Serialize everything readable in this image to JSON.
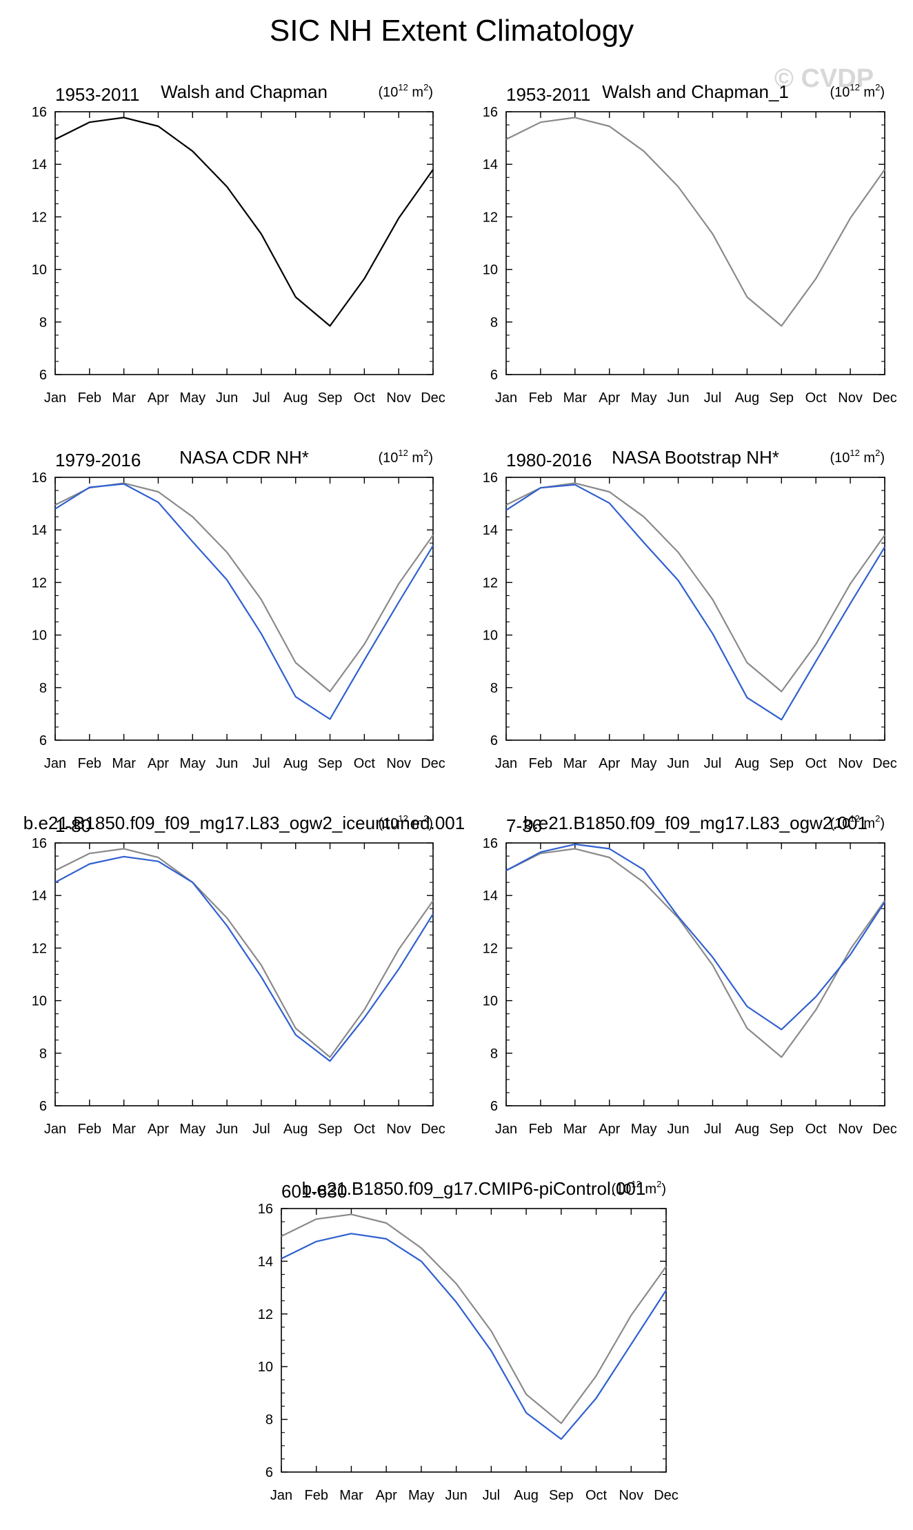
{
  "figure": {
    "title": "SIC NH Extent Climatology",
    "watermark": "© CVDP"
  },
  "colors": {
    "reference_line": "#8a8a8a",
    "model_line": "#2f5fd0",
    "black_line": "#000000",
    "axis": "#000000"
  },
  "chart_data": [
    {
      "type": "line",
      "title": "Walsh and Chapman",
      "period": "1953-2011",
      "units_base": "(10",
      "units_exp": "12",
      "units_unit": " m",
      "units_unit_exp": "2",
      "units_close": ")",
      "categories": [
        "Jan",
        "Feb",
        "Mar",
        "Apr",
        "May",
        "Jun",
        "Jul",
        "Aug",
        "Sep",
        "Oct",
        "Nov",
        "Dec"
      ],
      "ylim": [
        6,
        16
      ],
      "yticks": [
        "6",
        "8",
        "10",
        "12",
        "14",
        "16"
      ],
      "series": [
        {
          "name": "Walsh and Chapman",
          "role": "black",
          "values": [
            14.95,
            15.6,
            15.78,
            15.45,
            14.5,
            13.15,
            11.35,
            8.95,
            7.85,
            9.65,
            11.95,
            13.8
          ]
        }
      ]
    },
    {
      "type": "line",
      "title": "Walsh and Chapman_1",
      "period": "1953-2011",
      "units_base": "(10",
      "units_exp": "12",
      "units_unit": " m",
      "units_unit_exp": "2",
      "units_close": ")",
      "categories": [
        "Jan",
        "Feb",
        "Mar",
        "Apr",
        "May",
        "Jun",
        "Jul",
        "Aug",
        "Sep",
        "Oct",
        "Nov",
        "Dec"
      ],
      "ylim": [
        6,
        16
      ],
      "yticks": [
        "6",
        "8",
        "10",
        "12",
        "14",
        "16"
      ],
      "series": [
        {
          "name": "Walsh and Chapman_1",
          "role": "reference",
          "values": [
            14.95,
            15.6,
            15.78,
            15.45,
            14.5,
            13.15,
            11.35,
            8.95,
            7.85,
            9.65,
            11.95,
            13.8
          ]
        }
      ]
    },
    {
      "type": "line",
      "title": "NASA CDR NH*",
      "period": "1979-2016",
      "units_base": "(10",
      "units_exp": "12",
      "units_unit": " m",
      "units_unit_exp": "2",
      "units_close": ")",
      "categories": [
        "Jan",
        "Feb",
        "Mar",
        "Apr",
        "May",
        "Jun",
        "Jul",
        "Aug",
        "Sep",
        "Oct",
        "Nov",
        "Dec"
      ],
      "ylim": [
        6,
        16
      ],
      "yticks": [
        "6",
        "8",
        "10",
        "12",
        "14",
        "16"
      ],
      "series": [
        {
          "name": "Walsh and Chapman",
          "role": "reference",
          "values": [
            14.95,
            15.6,
            15.78,
            15.45,
            14.5,
            13.15,
            11.35,
            8.95,
            7.85,
            9.65,
            11.95,
            13.8
          ]
        },
        {
          "name": "NASA CDR NH*",
          "role": "model",
          "values": [
            14.8,
            15.62,
            15.75,
            15.05,
            13.55,
            12.1,
            10.05,
            7.65,
            6.8,
            9.05,
            11.25,
            13.4
          ]
        }
      ]
    },
    {
      "type": "line",
      "title": "NASA Bootstrap NH*",
      "period": "1980-2016",
      "units_base": "(10",
      "units_exp": "12",
      "units_unit": " m",
      "units_unit_exp": "2",
      "units_close": ")",
      "categories": [
        "Jan",
        "Feb",
        "Mar",
        "Apr",
        "May",
        "Jun",
        "Jul",
        "Aug",
        "Sep",
        "Oct",
        "Nov",
        "Dec"
      ],
      "ylim": [
        6,
        16
      ],
      "yticks": [
        "6",
        "8",
        "10",
        "12",
        "14",
        "16"
      ],
      "series": [
        {
          "name": "Walsh and Chapman",
          "role": "reference",
          "values": [
            14.95,
            15.6,
            15.78,
            15.45,
            14.5,
            13.15,
            11.35,
            8.95,
            7.85,
            9.65,
            11.95,
            13.8
          ]
        },
        {
          "name": "NASA Bootstrap NH*",
          "role": "model",
          "values": [
            14.75,
            15.6,
            15.72,
            15.02,
            13.52,
            12.08,
            10.05,
            7.62,
            6.78,
            9.0,
            11.2,
            13.35
          ]
        }
      ]
    },
    {
      "type": "line",
      "title": "b.e21.B1850.f09_f09_mg17.L83_ogw2_iceuntuned.001",
      "period": "1-80",
      "units_base": "(10",
      "units_exp": "12",
      "units_unit": " m",
      "units_unit_exp": "2",
      "units_close": ")",
      "categories": [
        "Jan",
        "Feb",
        "Mar",
        "Apr",
        "May",
        "Jun",
        "Jul",
        "Aug",
        "Sep",
        "Oct",
        "Nov",
        "Dec"
      ],
      "ylim": [
        6,
        16
      ],
      "yticks": [
        "6",
        "8",
        "10",
        "12",
        "14",
        "16"
      ],
      "series": [
        {
          "name": "Walsh and Chapman",
          "role": "reference",
          "values": [
            14.95,
            15.6,
            15.78,
            15.45,
            14.5,
            13.15,
            11.35,
            8.95,
            7.85,
            9.65,
            11.95,
            13.8
          ]
        },
        {
          "name": "b.e21.B1850.f09_f09_mg17.L83_ogw2_iceuntuned.001",
          "role": "model",
          "values": [
            14.5,
            15.2,
            15.48,
            15.3,
            14.5,
            12.85,
            10.9,
            8.7,
            7.7,
            9.35,
            11.2,
            13.3
          ]
        }
      ]
    },
    {
      "type": "line",
      "title": "b.e21.B1850.f09_f09_mg17.L83_ogw2.001",
      "period": "7-36",
      "units_base": "(10",
      "units_exp": "12",
      "units_unit": " m",
      "units_unit_exp": "2",
      "units_close": ")",
      "categories": [
        "Jan",
        "Feb",
        "Mar",
        "Apr",
        "May",
        "Jun",
        "Jul",
        "Aug",
        "Sep",
        "Oct",
        "Nov",
        "Dec"
      ],
      "ylim": [
        6,
        16
      ],
      "yticks": [
        "6",
        "8",
        "10",
        "12",
        "14",
        "16"
      ],
      "series": [
        {
          "name": "Walsh and Chapman",
          "role": "reference",
          "values": [
            14.95,
            15.6,
            15.78,
            15.45,
            14.5,
            13.15,
            11.35,
            8.95,
            7.85,
            9.65,
            11.95,
            13.8
          ]
        },
        {
          "name": "b.e21.B1850.f09_f09_mg17.L83_ogw2.001",
          "role": "model",
          "values": [
            14.95,
            15.65,
            15.95,
            15.78,
            14.98,
            13.2,
            11.65,
            9.78,
            8.9,
            10.15,
            11.75,
            13.75
          ]
        }
      ]
    },
    {
      "type": "line",
      "title": "b.e21.B1850.f09_g17.CMIP6-piControl.001",
      "period": "601-630",
      "units_base": "(10",
      "units_exp": "12",
      "units_unit": " m",
      "units_unit_exp": "2",
      "units_close": ")",
      "categories": [
        "Jan",
        "Feb",
        "Mar",
        "Apr",
        "May",
        "Jun",
        "Jul",
        "Aug",
        "Sep",
        "Oct",
        "Nov",
        "Dec"
      ],
      "ylim": [
        6,
        16
      ],
      "yticks": [
        "6",
        "8",
        "10",
        "12",
        "14",
        "16"
      ],
      "series": [
        {
          "name": "Walsh and Chapman",
          "role": "reference",
          "values": [
            14.95,
            15.6,
            15.78,
            15.45,
            14.5,
            13.15,
            11.35,
            8.95,
            7.85,
            9.65,
            11.95,
            13.8
          ]
        },
        {
          "name": "b.e21.B1850.f09_g17.CMIP6-piControl.001",
          "role": "model",
          "values": [
            14.1,
            14.75,
            15.05,
            14.85,
            14.0,
            12.45,
            10.6,
            8.25,
            7.25,
            8.8,
            10.85,
            12.9
          ]
        }
      ]
    }
  ]
}
